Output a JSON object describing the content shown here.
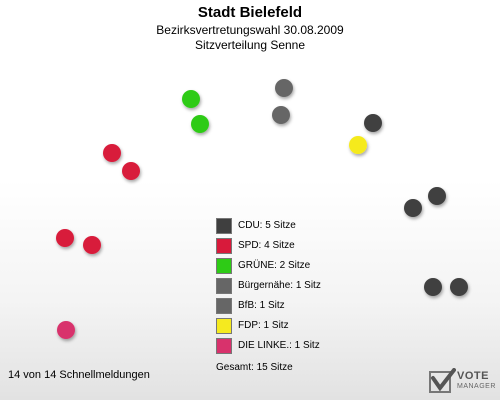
{
  "chart_data": {
    "type": "seat-distribution",
    "title": "Stadt Bielefeld",
    "subtitle": "Bezirksvertretungswahl 30.08.2009",
    "subtitle2": "Sitzverteilung Senne",
    "parties": [
      {
        "name": "CDU",
        "seats": 5,
        "label": "CDU: 5 Sitze",
        "color": "#3f3f3f"
      },
      {
        "name": "SPD",
        "seats": 4,
        "label": "SPD: 4 Sitze",
        "color": "#d81a3b"
      },
      {
        "name": "GRÜNE",
        "seats": 2,
        "label": "GRÜNE: 2 Sitze",
        "color": "#2ecb16"
      },
      {
        "name": "Bürgernähe",
        "seats": 1,
        "label": "Bürgernähe: 1 Sitz",
        "color": "#666666"
      },
      {
        "name": "BfB",
        "seats": 1,
        "label": "BfB: 1 Sitz",
        "color": "#666666"
      },
      {
        "name": "FDP",
        "seats": 1,
        "label": "FDP: 1 Sitz",
        "color": "#f5ea1f"
      },
      {
        "name": "DIE LINKE.",
        "seats": 1,
        "label": "DIE LINKE.: 1 Sitz",
        "color": "#d8326c"
      }
    ],
    "total_label": "Gesamt: 15 Sitze",
    "total_seats": 15
  },
  "footer": {
    "status": "14 von 14 Schnellmeldungen"
  },
  "brand": {
    "line1": "VOTE",
    "line2": "MANAGER"
  }
}
